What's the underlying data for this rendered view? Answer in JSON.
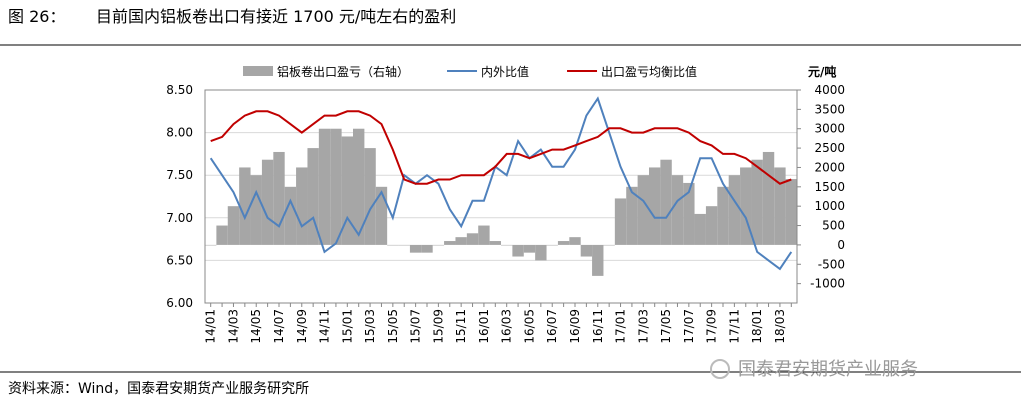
{
  "chart_data": {
    "type": "line",
    "figure_label": "图 26：",
    "title": "目前国内铝板卷出口有接近 1700 元/吨左右的盈利",
    "y2_label": "元/吨",
    "source": "资料来源：Wind，国泰君安期货产业服务研究所",
    "watermark": "国泰君安期货产业服务",
    "legend": "top",
    "categories": [
      "14/01",
      null,
      "14/03",
      null,
      "14/05",
      null,
      "14/07",
      null,
      "14/09",
      null,
      "14/11",
      null,
      "15/01",
      null,
      "15/03",
      null,
      "15/05",
      null,
      "15/07",
      null,
      "15/09",
      null,
      "15/11",
      null,
      "16/01",
      null,
      "16/03",
      null,
      "16/05",
      null,
      "16/07",
      null,
      "16/09",
      null,
      "16/11",
      null,
      "17/01",
      null,
      "17/03",
      null,
      "17/05",
      null,
      "17/07",
      null,
      "17/09",
      null,
      "17/11",
      null,
      "18/01",
      null,
      "18/03",
      null
    ],
    "ylim": [
      6.0,
      8.5
    ],
    "yticks": [
      {
        "value": 6.0,
        "label": "6.00"
      },
      {
        "value": 6.5,
        "label": "6.50"
      },
      {
        "value": 7.0,
        "label": "7.00"
      },
      {
        "value": 7.5,
        "label": "7.50"
      },
      {
        "value": 8.0,
        "label": "8.00"
      },
      {
        "value": 8.5,
        "label": "8.50"
      }
    ],
    "y2lim": [
      -1500,
      4000
    ],
    "y2ticks": [
      -1000,
      -500,
      0,
      500,
      1000,
      1500,
      2000,
      2500,
      3000,
      3500,
      4000
    ],
    "series": [
      {
        "name": "铝板卷出口盈亏（右轴）",
        "type": "bar",
        "axis": "y2",
        "color": "#a6a6a6",
        "values": [
          0,
          500,
          1000,
          2000,
          1800,
          2200,
          2400,
          1500,
          2000,
          2500,
          3000,
          3000,
          2800,
          3000,
          2500,
          1500,
          0,
          0,
          -200,
          -200,
          0,
          100,
          200,
          300,
          500,
          100,
          0,
          -300,
          -200,
          -400,
          0,
          100,
          200,
          -300,
          -800,
          0,
          1200,
          1500,
          1800,
          2000,
          2200,
          1800,
          1600,
          800,
          1000,
          1500,
          1800,
          2000,
          2200,
          2400,
          2000,
          1700
        ]
      },
      {
        "name": "内外比值",
        "type": "line",
        "color": "#4f81bd",
        "values": [
          7.7,
          7.5,
          7.3,
          7.0,
          7.3,
          7.0,
          6.9,
          7.2,
          6.9,
          7.0,
          6.6,
          6.7,
          7.0,
          6.8,
          7.1,
          7.3,
          7.0,
          7.5,
          7.4,
          7.5,
          7.4,
          7.1,
          6.9,
          7.2,
          7.2,
          7.6,
          7.5,
          7.9,
          7.7,
          7.8,
          7.6,
          7.6,
          7.8,
          8.2,
          8.4,
          8.0,
          7.6,
          7.3,
          7.2,
          7.0,
          7.0,
          7.2,
          7.3,
          7.7,
          7.7,
          7.4,
          7.2,
          7.0,
          6.6,
          6.5,
          6.4,
          6.6
        ]
      },
      {
        "name": "出口盈亏均衡比值",
        "type": "line",
        "color": "#c00000",
        "values": [
          7.9,
          7.95,
          8.1,
          8.2,
          8.25,
          8.25,
          8.2,
          8.1,
          8.0,
          8.1,
          8.2,
          8.2,
          8.25,
          8.25,
          8.2,
          8.1,
          7.8,
          7.45,
          7.4,
          7.4,
          7.45,
          7.45,
          7.5,
          7.5,
          7.5,
          7.6,
          7.75,
          7.75,
          7.7,
          7.75,
          7.8,
          7.8,
          7.85,
          7.9,
          7.95,
          8.05,
          8.05,
          8.0,
          8.0,
          8.05,
          8.05,
          8.05,
          8.0,
          7.9,
          7.85,
          7.75,
          7.75,
          7.7,
          7.6,
          7.5,
          7.4,
          7.45
        ]
      }
    ]
  }
}
